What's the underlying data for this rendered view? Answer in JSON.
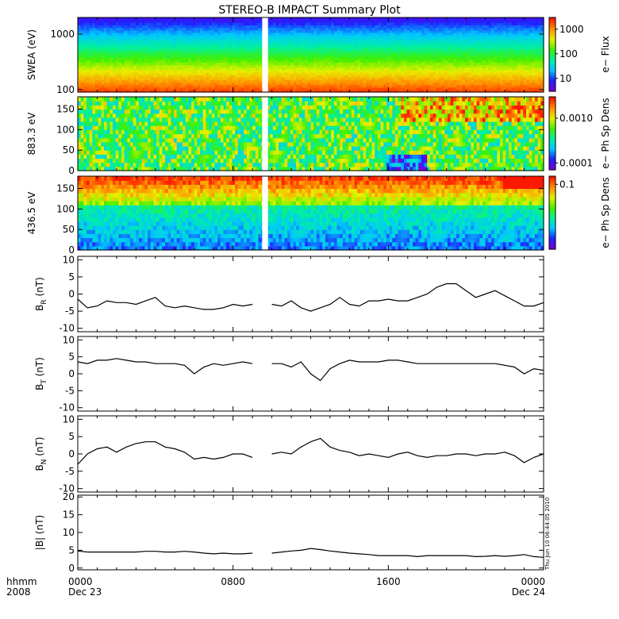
{
  "title": "STEREO-B IMPACT Summary Plot",
  "timestamp": "Thu Jun 10 06:44:05 2010",
  "colors": {
    "axis": "#000000",
    "line": "#000000",
    "gap": "#ffffff",
    "colormap": [
      "#7a00d8",
      "#2020ff",
      "#00c8ff",
      "#00f0a0",
      "#40f000",
      "#e8f000",
      "#ff9000",
      "#ff1800"
    ]
  },
  "time_axis": {
    "start_hours": 0,
    "end_hours": 24,
    "ticks": [
      {
        "hours": 0,
        "label": "0000",
        "sublabel": "Dec 23"
      },
      {
        "hours": 8,
        "label": "0800",
        "sublabel": ""
      },
      {
        "hours": 16,
        "label": "1600",
        "sublabel": ""
      },
      {
        "hours": 24,
        "label": "0000",
        "sublabel": "Dec 24"
      }
    ],
    "left_labels": [
      "hhmm",
      "2008"
    ],
    "data_gap_hours": [
      9.5,
      9.8
    ]
  },
  "chart_data": [
    {
      "type": "heatmap",
      "ylabel": "SWEA (eV)",
      "yscale": "log",
      "ylim": [
        90,
        2000
      ],
      "yticks": [
        {
          "v": 100,
          "label": "100"
        },
        {
          "v": 1000,
          "label": "1000"
        }
      ],
      "colorbar": {
        "label": "e− Flux",
        "scale": "log",
        "range": [
          3,
          3000
        ],
        "ticks": [
          {
            "v": 10,
            "label": "10"
          },
          {
            "v": 100,
            "label": "100"
          },
          {
            "v": 1000,
            "label": "1000"
          }
        ]
      }
    },
    {
      "type": "heatmap",
      "ylabel": "883.3 eV",
      "yscale": "linear",
      "ylim": [
        0,
        180
      ],
      "yticks": [
        {
          "v": 0,
          "label": "0"
        },
        {
          "v": 50,
          "label": "50"
        },
        {
          "v": 100,
          "label": "100"
        },
        {
          "v": 150,
          "label": "150"
        }
      ],
      "colorbar": {
        "label": "e− Ph Sp Dens",
        "scale": "log",
        "range": [
          7e-05,
          0.003
        ],
        "ticks": [
          {
            "v": 0.0001,
            "label": "0.0001"
          },
          {
            "v": 0.001,
            "label": "0.0010"
          }
        ]
      }
    },
    {
      "type": "heatmap",
      "ylabel": "436.5 eV",
      "yscale": "linear",
      "ylim": [
        0,
        180
      ],
      "yticks": [
        {
          "v": 0,
          "label": "0"
        },
        {
          "v": 50,
          "label": "50"
        },
        {
          "v": 100,
          "label": "100"
        },
        {
          "v": 150,
          "label": "150"
        }
      ],
      "colorbar": {
        "label": "e− Ph Sp Dens",
        "scale": "log",
        "range": [
          0.004,
          0.15
        ],
        "ticks": [
          {
            "v": 0.1,
            "label": "0.1"
          }
        ]
      }
    },
    {
      "type": "line",
      "ylabel": "B",
      "ylabel_sub": "R",
      "ylabel_unit": " (nT)",
      "ylim": [
        -11,
        11
      ],
      "yticks": [
        -10,
        -5,
        0,
        5,
        10
      ],
      "x": [
        0,
        0.5,
        1,
        1.5,
        2,
        2.5,
        3,
        3.5,
        4,
        4.5,
        5,
        5.5,
        6,
        6.5,
        7,
        7.5,
        8,
        8.5,
        9,
        9.5,
        10,
        10.5,
        11,
        11.5,
        12,
        12.5,
        13,
        13.5,
        14,
        14.5,
        15,
        15.5,
        16,
        16.5,
        17,
        17.5,
        18,
        18.5,
        19,
        19.5,
        20,
        20.5,
        21,
        21.5,
        22,
        22.5,
        23,
        23.5,
        24
      ],
      "y": [
        -1.5,
        -4,
        -3.5,
        -2,
        -2.5,
        -2.5,
        -3,
        -2,
        -1,
        -3.5,
        -4,
        -3.5,
        -4,
        -4.5,
        -4.5,
        -4,
        -3,
        -3.5,
        -3,
        null,
        -3,
        -3.5,
        -2,
        -4,
        -5,
        -4,
        -3,
        -1,
        -3,
        -3.5,
        -2,
        -2,
        -1.5,
        -2,
        -2,
        -1,
        0,
        2,
        3,
        3,
        1,
        -1,
        0,
        1,
        -0.5,
        -2,
        -3.5,
        -3.5,
        -2.5
      ]
    },
    {
      "type": "line",
      "ylabel": "B",
      "ylabel_sub": "T",
      "ylabel_unit": " (nT)",
      "ylim": [
        -11,
        11
      ],
      "yticks": [
        -10,
        -5,
        0,
        5,
        10
      ],
      "x": [
        0,
        0.5,
        1,
        1.5,
        2,
        2.5,
        3,
        3.5,
        4,
        4.5,
        5,
        5.5,
        6,
        6.5,
        7,
        7.5,
        8,
        8.5,
        9,
        9.5,
        10,
        10.5,
        11,
        11.5,
        12,
        12.5,
        13,
        13.5,
        14,
        14.5,
        15,
        15.5,
        16,
        16.5,
        17,
        17.5,
        18,
        18.5,
        19,
        19.5,
        20,
        20.5,
        21,
        21.5,
        22,
        22.5,
        23,
        23.5,
        24
      ],
      "y": [
        3.5,
        3,
        4,
        4,
        4.5,
        4,
        3.5,
        3.5,
        3,
        3,
        3,
        2.5,
        0,
        2,
        3,
        2.5,
        3,
        3.5,
        3,
        null,
        3,
        3,
        2,
        3.5,
        0,
        -2,
        1.5,
        3,
        4,
        3.5,
        3.5,
        3.5,
        4,
        4,
        3.5,
        3,
        3,
        3,
        3,
        3,
        3,
        3,
        3,
        3,
        2.5,
        2,
        0,
        1.5,
        1
      ]
    },
    {
      "type": "line",
      "ylabel": "B",
      "ylabel_sub": "N",
      "ylabel_unit": " (nT)",
      "ylim": [
        -11,
        11
      ],
      "yticks": [
        -10,
        -5,
        0,
        5,
        10
      ],
      "x": [
        0,
        0.5,
        1,
        1.5,
        2,
        2.5,
        3,
        3.5,
        4,
        4.5,
        5,
        5.5,
        6,
        6.5,
        7,
        7.5,
        8,
        8.5,
        9,
        9.5,
        10,
        10.5,
        11,
        11.5,
        12,
        12.5,
        13,
        13.5,
        14,
        14.5,
        15,
        15.5,
        16,
        16.5,
        17,
        17.5,
        18,
        18.5,
        19,
        19.5,
        20,
        20.5,
        21,
        21.5,
        22,
        22.5,
        23,
        23.5,
        24
      ],
      "y": [
        -3,
        0,
        1.5,
        2,
        0.5,
        2,
        3,
        3.5,
        3.5,
        2,
        1.5,
        0.5,
        -1.5,
        -1,
        -1.5,
        -1,
        0,
        0,
        -1,
        null,
        0,
        0.5,
        0,
        2,
        3.5,
        4.5,
        2,
        1,
        0.5,
        -0.5,
        0,
        -0.5,
        -1,
        0,
        0.5,
        -0.5,
        -1,
        -0.5,
        -0.5,
        0,
        0,
        -0.5,
        0,
        0,
        0.5,
        -0.5,
        -2.5,
        -1,
        0
      ]
    },
    {
      "type": "line",
      "ylabel": "|B| (nT)",
      "ylim": [
        -0.5,
        20.5
      ],
      "yticks": [
        0,
        5,
        10,
        15,
        20
      ],
      "x": [
        0,
        0.5,
        1,
        1.5,
        2,
        2.5,
        3,
        3.5,
        4,
        4.5,
        5,
        5.5,
        6,
        6.5,
        7,
        7.5,
        8,
        8.5,
        9,
        9.5,
        10,
        10.5,
        11,
        11.5,
        12,
        12.5,
        13,
        13.5,
        14,
        14.5,
        15,
        15.5,
        16,
        16.5,
        17,
        17.5,
        18,
        18.5,
        19,
        19.5,
        20,
        20.5,
        21,
        21.5,
        22,
        22.5,
        23,
        23.5,
        24
      ],
      "y": [
        4.8,
        4.5,
        4.5,
        4.5,
        4.5,
        4.5,
        4.5,
        4.7,
        4.7,
        4.5,
        4.5,
        4.7,
        4.5,
        4.2,
        4,
        4.2,
        4,
        4,
        4.2,
        null,
        4.2,
        4.5,
        4.8,
        5,
        5.5,
        5.2,
        4.8,
        4.5,
        4.2,
        4,
        3.8,
        3.5,
        3.5,
        3.5,
        3.5,
        3.2,
        3.5,
        3.5,
        3.5,
        3.5,
        3.5,
        3.2,
        3.3,
        3.5,
        3.3,
        3.5,
        3.8,
        3.2,
        3
      ]
    }
  ]
}
